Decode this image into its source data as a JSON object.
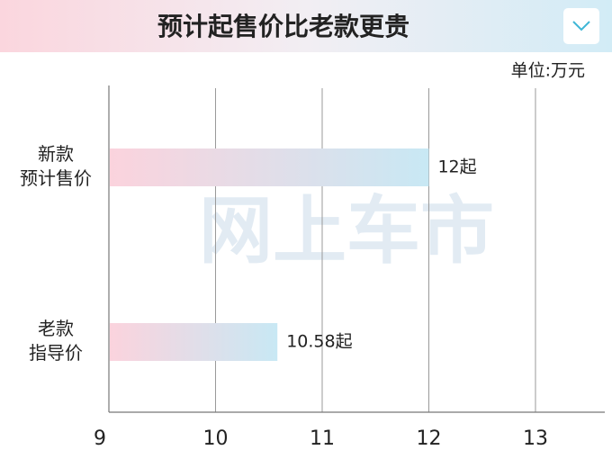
{
  "chart_data": {
    "type": "hbar",
    "title": "预计起售价比老款更贵",
    "unit": "单位:万元",
    "watermark": "网上车市",
    "categories": [
      "新款\n预计售价",
      "老款\n指导价"
    ],
    "values": [
      12,
      10.58
    ],
    "value_labels": [
      "12起",
      "10.58起"
    ],
    "colors": [
      "#fbd3dd",
      "#c8e8f4"
    ],
    "xlim": [
      9,
      13.65
    ],
    "xticks": [
      9,
      10,
      11,
      12,
      13
    ],
    "grid": true
  }
}
